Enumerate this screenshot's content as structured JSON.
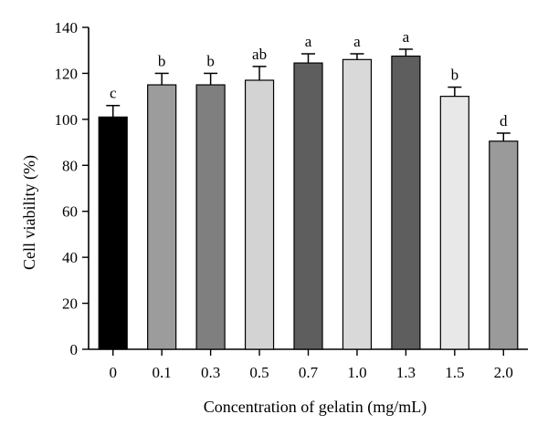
{
  "chart_data": {
    "type": "bar",
    "xlabel": "Concentration of gelatin (mg/mL)",
    "ylabel": "Cell viability (%)",
    "ylim": [
      0,
      140
    ],
    "yticks": [
      0,
      20,
      40,
      60,
      80,
      100,
      120,
      140
    ],
    "categories": [
      "0",
      "0.1",
      "0.3",
      "0.5",
      "0.7",
      "1.0",
      "1.3",
      "1.5",
      "2.0"
    ],
    "values": [
      101,
      115,
      115,
      117,
      124.5,
      126,
      127.5,
      110,
      90.5
    ],
    "errors": [
      5,
      5,
      5,
      6,
      4,
      2.5,
      3,
      4,
      3.5
    ],
    "significance_letters": [
      "c",
      "b",
      "b",
      "ab",
      "a",
      "a",
      "a",
      "b",
      "d"
    ],
    "bar_colors": [
      "#000000",
      "#9c9c9c",
      "#7f7f7f",
      "#d3d3d3",
      "#5e5e5e",
      "#d9d9d9",
      "#5e5e5e",
      "#e8e8e8",
      "#9a9a9a"
    ],
    "grid": false,
    "legend": "none"
  }
}
